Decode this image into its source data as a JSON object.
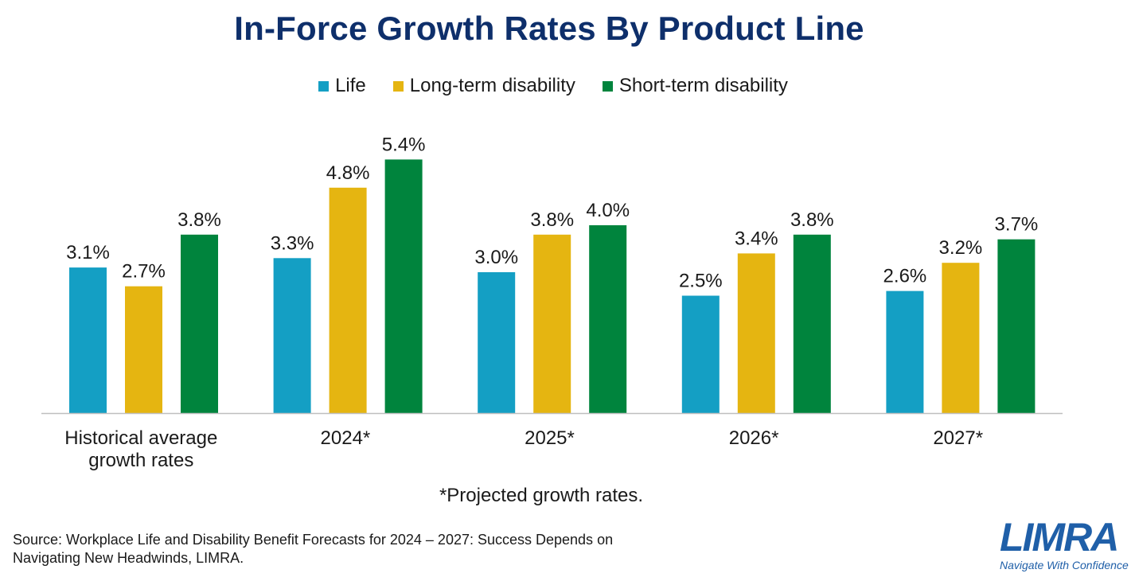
{
  "colors": {
    "life": "#149fc4",
    "ltd": "#e5b511",
    "std": "#00843d",
    "title": "#0e2f6b",
    "brand": "#1f5fa8"
  },
  "chart_data": {
    "type": "bar",
    "title": "In-Force Growth Rates By Product Line",
    "categories": [
      "Historical average growth rates",
      "2024*",
      "2025*",
      "2026*",
      "2027*"
    ],
    "series": [
      {
        "name": "Life",
        "values": [
          3.1,
          3.3,
          3.0,
          2.5,
          2.6
        ],
        "labels": [
          "3.1%",
          "3.3%",
          "3.0%",
          "2.5%",
          "2.6%"
        ]
      },
      {
        "name": "Long-term disability",
        "values": [
          2.7,
          4.8,
          3.8,
          3.4,
          3.2
        ],
        "labels": [
          "2.7%",
          "4.8%",
          "3.8%",
          "3.4%",
          "3.2%"
        ]
      },
      {
        "name": "Short-term disability",
        "values": [
          3.8,
          5.4,
          4.0,
          3.8,
          3.7
        ],
        "labels": [
          "3.8%",
          "5.4%",
          "4.0%",
          "3.8%",
          "3.7%"
        ]
      }
    ],
    "ylim": [
      0,
      6
    ],
    "unit": "%",
    "grid": false,
    "legend": "top-center",
    "xlabel": "",
    "ylabel": ""
  },
  "footnote": "*Projected growth rates.",
  "source": "Source: Workplace Life and Disability Benefit Forecasts for 2024 – 2027: Success Depends on Navigating New Headwinds, LIMRA.",
  "logo": {
    "name": "LIMRA",
    "tagline": "Navigate With Confidence"
  }
}
